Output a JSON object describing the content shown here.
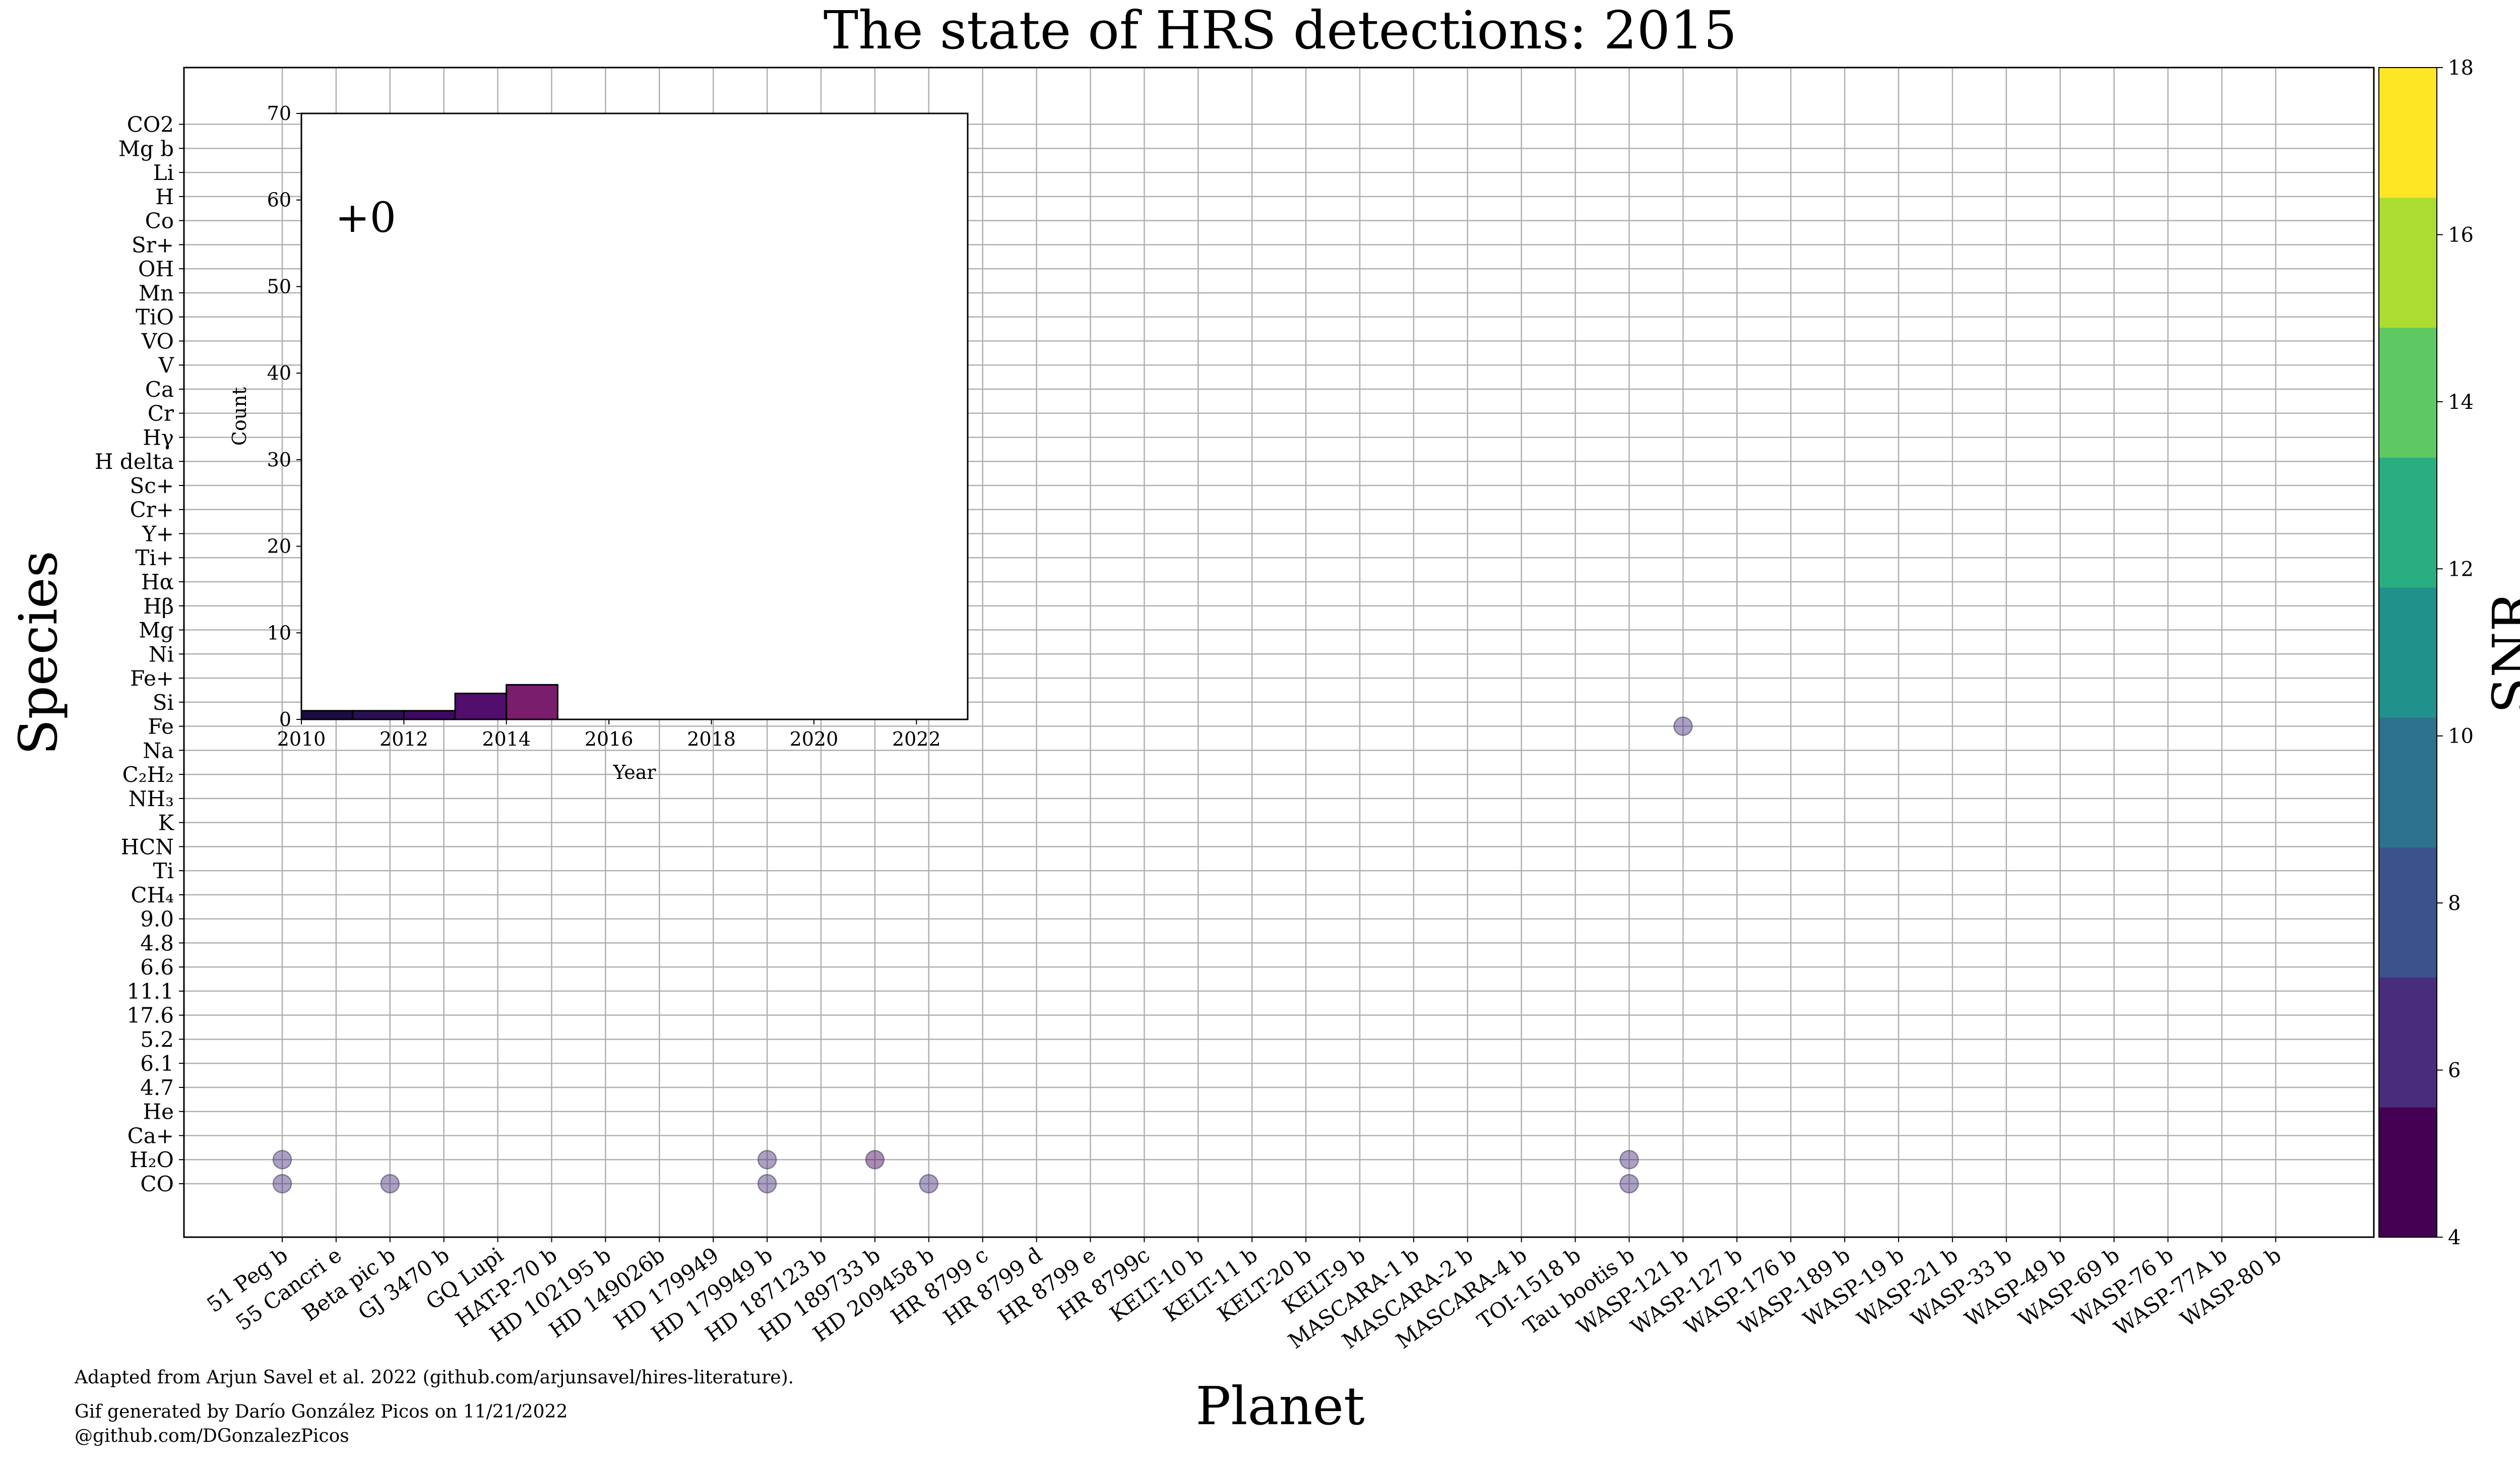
{
  "chart_data": [
    {
      "type": "scatter",
      "title": "The state of HRS detections: 2015",
      "xlabel": "Planet",
      "ylabel": "Species",
      "grid": true,
      "x_categories": [
        "51 Peg b",
        "55 Cancri e",
        "Beta pic b",
        "GJ 3470 b",
        "GQ Lupi",
        "HAT-P-70 b",
        "HD 102195 b",
        "HD 149026b",
        "HD 179949",
        "HD 179949 b",
        "HD 187123 b",
        "HD 189733 b",
        "HD 209458 b",
        "HR 8799 c",
        "HR 8799 d",
        "HR 8799 e",
        "HR 8799c",
        "KELT-10 b",
        "KELT-11 b",
        "KELT-20 b",
        "KELT-9 b",
        "MASCARA-1 b",
        "MASCARA-2 b",
        "MASCARA-4 b",
        "TOI-1518 b",
        "Tau bootis b",
        "WASP-121 b",
        "WASP-127 b",
        "WASP-176 b",
        "WASP-189 b",
        "WASP-19 b",
        "WASP-21 b",
        "WASP-33 b",
        "WASP-49 b",
        "WASP-69 b",
        "WASP-76 b",
        "WASP-77A b",
        "WASP-80 b"
      ],
      "y_categories": [
        "CO",
        "H₂O",
        "Ca+",
        "He",
        "4.7",
        "6.1",
        "5.2",
        "17.6",
        "11.1",
        "6.6",
        "4.8",
        "9.0",
        "CH₄",
        "Ti",
        "HCN",
        "K",
        "NH₃",
        "C₂H₂",
        "Na",
        "Fe",
        "Si",
        "Fe+",
        "Ni",
        "Mg",
        "Hβ",
        "Hα",
        "Ti+",
        "Y+",
        "Cr+",
        "Sc+",
        "H delta",
        "Hγ",
        "Cr",
        "Ca",
        "V",
        "VO",
        "TiO",
        "Mn",
        "OH",
        "Sr+",
        "Co",
        "H",
        "Li",
        "Mg b",
        "CO2"
      ],
      "points": [
        {
          "planet": "51 Peg b",
          "species": "H₂O",
          "snr": 6
        },
        {
          "planet": "51 Peg b",
          "species": "CO",
          "snr": 6
        },
        {
          "planet": "Beta pic b",
          "species": "CO",
          "snr": 6
        },
        {
          "planet": "HD 179949 b",
          "species": "H₂O",
          "snr": 6
        },
        {
          "planet": "HD 179949 b",
          "species": "CO",
          "snr": 6
        },
        {
          "planet": "HD 189733 b",
          "species": "H₂O",
          "snr": 4.8
        },
        {
          "planet": "HD 209458 b",
          "species": "CO",
          "snr": 6
        },
        {
          "planet": "Tau bootis b",
          "species": "H₂O",
          "snr": 6
        },
        {
          "planet": "Tau bootis b",
          "species": "CO",
          "snr": 6
        },
        {
          "planet": "WASP-121 b",
          "species": "Fe",
          "snr": 6
        }
      ],
      "colorbar": {
        "label": "SNR",
        "range": [
          4,
          18
        ],
        "ticks": [
          4,
          6,
          8,
          10,
          12,
          14,
          16,
          18
        ],
        "colors": [
          "#440154",
          "#472d7b",
          "#3b528b",
          "#2c728e",
          "#21918c",
          "#28ae80",
          "#5ec962",
          "#addc30",
          "#fde725"
        ]
      }
    },
    {
      "type": "bar",
      "inset": true,
      "xlabel": "Year",
      "ylabel": "Count",
      "xlim": [
        2010,
        2023
      ],
      "ylim": [
        0,
        70
      ],
      "xticks": [
        2010,
        2012,
        2014,
        2016,
        2018,
        2020,
        2022
      ],
      "yticks": [
        0,
        10,
        20,
        30,
        40,
        50,
        60,
        70
      ],
      "annotation": "+0",
      "bars": [
        {
          "year": 2010,
          "count": 1,
          "color": "#1b0c41"
        },
        {
          "year": 2011,
          "count": 1,
          "color": "#2b0f54"
        },
        {
          "year": 2012,
          "count": 1,
          "color": "#3d0965"
        },
        {
          "year": 2013,
          "count": 3,
          "color": "#520e6d"
        },
        {
          "year": 2014,
          "count": 4,
          "color": "#7a1d6d"
        }
      ]
    }
  ],
  "footer": {
    "line1": "Adapted from Arjun Savel et al. 2022 (github.com/arjunsavel/hires-literature).",
    "line2": "Gif generated by Darío González Picos on 11/21/2022",
    "line3": "@github.com/DGonzalezPicos"
  }
}
